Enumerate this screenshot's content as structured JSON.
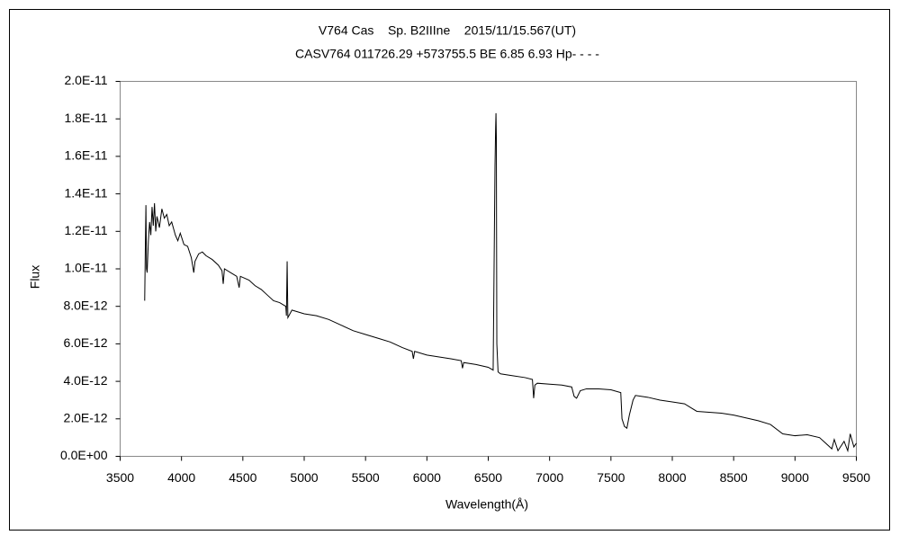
{
  "chart_data": {
    "type": "line",
    "title": "V764 Cas    Sp. B2IIIne    2015/11/15.567(UT)",
    "subtitle": "CASV764 011726.29 +573755.5 BE 6.85 6.93 Hp- - - -",
    "xlabel": "Wavelength(Å)",
    "ylabel": "Flux",
    "xlim": [
      3500,
      9500
    ],
    "xticks": [
      3500,
      4000,
      4500,
      5000,
      5500,
      6000,
      6500,
      7000,
      7500,
      8000,
      8500,
      9000,
      9500
    ],
    "ylim": [
      0,
      2e-11
    ],
    "yticks": [
      {
        "value": 0,
        "label": "0.0E+00"
      },
      {
        "value": 2e-12,
        "label": "2.0E-12"
      },
      {
        "value": 4e-12,
        "label": "4.0E-12"
      },
      {
        "value": 6e-12,
        "label": "6.0E-12"
      },
      {
        "value": 8e-12,
        "label": "8.0E-12"
      },
      {
        "value": 1e-11,
        "label": "1.0E-11"
      },
      {
        "value": 1.2e-11,
        "label": "1.2E-11"
      },
      {
        "value": 1.4e-11,
        "label": "1.4E-11"
      },
      {
        "value": 1.6e-11,
        "label": "1.6E-11"
      },
      {
        "value": 1.8e-11,
        "label": "1.8E-11"
      },
      {
        "value": 2e-11,
        "label": "2.0E-11"
      }
    ],
    "grid": false,
    "x": [
      3700,
      3705,
      3710,
      3715,
      3720,
      3730,
      3740,
      3750,
      3760,
      3770,
      3780,
      3790,
      3800,
      3820,
      3840,
      3860,
      3880,
      3900,
      3920,
      3950,
      3970,
      3990,
      4020,
      4050,
      4080,
      4100,
      4110,
      4140,
      4170,
      4200,
      4250,
      4300,
      4330,
      4340,
      4350,
      4400,
      4450,
      4470,
      4480,
      4550,
      4600,
      4650,
      4700,
      4750,
      4800,
      4850,
      4855,
      4861,
      4867,
      4900,
      5000,
      5100,
      5200,
      5300,
      5400,
      5500,
      5600,
      5700,
      5800,
      5880,
      5890,
      5900,
      6000,
      6100,
      6200,
      6280,
      6290,
      6300,
      6400,
      6500,
      6540,
      6555,
      6560,
      6563,
      6566,
      6570,
      6580,
      6600,
      6700,
      6800,
      6860,
      6870,
      6880,
      6900,
      7000,
      7100,
      7180,
      7200,
      7220,
      7250,
      7300,
      7400,
      7500,
      7580,
      7590,
      7610,
      7630,
      7650,
      7680,
      7700,
      7800,
      7900,
      8000,
      8100,
      8150,
      8200,
      8300,
      8400,
      8500,
      8600,
      8700,
      8800,
      8900,
      9000,
      9100,
      9200,
      9250,
      9300,
      9320,
      9350,
      9400,
      9430,
      9450,
      9480,
      9500
    ],
    "series": [
      {
        "color": "#000000",
        "values": [
          8.3e-12,
          1.1e-11,
          1.34e-11,
          1e-11,
          9.8e-12,
          1.15e-11,
          1.25e-11,
          1.18e-11,
          1.33e-11,
          1.23e-11,
          1.35e-11,
          1.2e-11,
          1.28e-11,
          1.22e-11,
          1.32e-11,
          1.27e-11,
          1.29e-11,
          1.23e-11,
          1.25e-11,
          1.18e-11,
          1.15e-11,
          1.19e-11,
          1.13e-11,
          1.12e-11,
          1.06e-11,
          9.8e-12,
          1.04e-11,
          1.08e-11,
          1.09e-11,
          1.07e-11,
          1.05e-11,
          1.02e-11,
          9.9e-12,
          9.2e-12,
          1e-11,
          9.8e-12,
          9.6e-12,
          9e-12,
          9.6e-12,
          9.4e-12,
          9.1e-12,
          8.9e-12,
          8.6e-12,
          8.3e-12,
          8.2e-12,
          8e-12,
          7.5e-12,
          1.04e-11,
          7.4e-12,
          7.8e-12,
          7.6e-12,
          7.5e-12,
          7.3e-12,
          7e-12,
          6.7e-12,
          6.5e-12,
          6.3e-12,
          6.1e-12,
          5.8e-12,
          5.6e-12,
          5.2e-12,
          5.6e-12,
          5.4e-12,
          5.3e-12,
          5.2e-12,
          5.1e-12,
          4.7e-12,
          5e-12,
          4.9e-12,
          4.75e-12,
          4.6e-12,
          1.55e-11,
          1.75e-11,
          1.83e-11,
          1.7e-11,
          6e-12,
          4.5e-12,
          4.4e-12,
          4.3e-12,
          4.2e-12,
          4.1e-12,
          3.1e-12,
          3.8e-12,
          3.9e-12,
          3.85e-12,
          3.8e-12,
          3.7e-12,
          3.2e-12,
          3.1e-12,
          3.5e-12,
          3.6e-12,
          3.6e-12,
          3.55e-12,
          3.4e-12,
          2e-12,
          1.6e-12,
          1.5e-12,
          2.2e-12,
          3e-12,
          3.25e-12,
          3.15e-12,
          3e-12,
          2.9e-12,
          2.8e-12,
          2.6e-12,
          2.4e-12,
          2.35e-12,
          2.3e-12,
          2.2e-12,
          2.05e-12,
          1.9e-12,
          1.7e-12,
          1.2e-12,
          1.1e-12,
          1.15e-12,
          1e-12,
          7e-13,
          4e-13,
          9e-13,
          3e-13,
          8e-13,
          3e-13,
          1.2e-12,
          5e-13,
          7e-13
        ]
      }
    ]
  }
}
